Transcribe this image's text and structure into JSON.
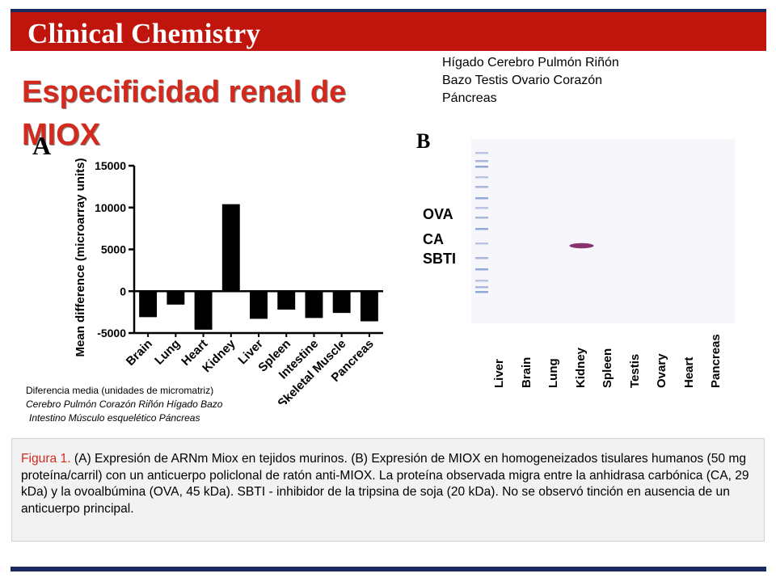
{
  "header": {
    "title": "Clinical Chemistry"
  },
  "slide_title": "Especificidad renal de MIOX",
  "top_right_labels": [
    "Hígado Cerebro Pulmón Riñón",
    "Bazo Testis Ovario Corazón",
    "Páncreas"
  ],
  "panel_a": {
    "letter": "A",
    "chart_data": {
      "type": "bar",
      "ylabel": "Mean difference (microarray units)",
      "xlabel": "",
      "ylim": [
        -5000,
        15000
      ],
      "yticks": [
        "15000",
        "10000",
        "5000",
        "0",
        "-5000"
      ],
      "ytick_values": [
        15000,
        10000,
        5000,
        0,
        -5000
      ],
      "categories": [
        "Brain",
        "Lung",
        "Heart",
        "Kidney",
        "Liver",
        "Spleen",
        "Intestine",
        "Skeletal Muscle",
        "Pancreas"
      ],
      "values": [
        -3100,
        -1600,
        -4600,
        10400,
        -3300,
        -2200,
        -3200,
        -2600,
        -3600
      ],
      "bar_color": "#000000"
    }
  },
  "spanish_caption": {
    "line1": "Diferencia media (unidades de micromatriz)",
    "line2": "Cerebro Pulmón Corazón Riñón Hígado Bazo",
    "line3": "Intestino Músculo esquelético  Páncreas"
  },
  "panel_b": {
    "letter": "B",
    "markers": [
      "OVA",
      "CA",
      "SBTI"
    ],
    "lanes": [
      "Liver",
      "Brain",
      "Lung",
      "Kidney",
      "Spleen",
      "Testis",
      "Ovary",
      "Heart",
      "Pancreas"
    ],
    "band_lane": "Kidney",
    "band_color": "#7a1f5a",
    "ladder_color": "#6f8fc7"
  },
  "figure_caption": {
    "label": "Figura 1.",
    "text": "(A) Expresión de ARNm Miox en tejidos murinos. (B) Expresión de MIOX en homogeneizados tisulares humanos (50 mg proteína/carril) con un anticuerpo policlonal de ratón anti-MIOX. La proteína observada migra entre la anhidrasa carbónica (CA, 29 kDa) y la ovoalbúmina (OVA, 45 kDa). SBTI - inhibidor de la tripsina de soja (20 kDa). No se observó tinción en ausencia de un anticuerpo principal."
  },
  "colors": {
    "header_red": "#c0150c",
    "navy": "#1a2a5c",
    "title_red": "#d42a1e",
    "caption_bg": "#f2f2f2"
  }
}
